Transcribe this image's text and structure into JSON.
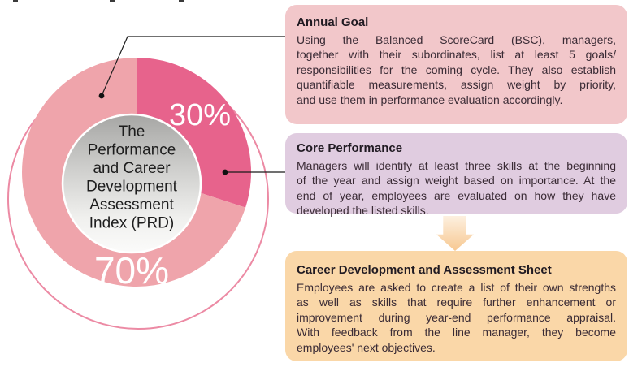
{
  "chart_data": {
    "type": "pie",
    "title": "The Performance and Career Development Assessment Index (PRD)",
    "labels": [
      "30%",
      "70%"
    ],
    "values": [
      30,
      70
    ],
    "colors": [
      "#e7638c",
      "#efa4ab"
    ],
    "label_color": "#ffffff",
    "ring_stroke_color": "#ec8aa4",
    "center_text_lines": [
      "The",
      "Performance",
      "and Career",
      "Development",
      "Assessment",
      "Index (PRD)"
    ],
    "legend": "none",
    "annotations": [
      "callout from 70% segment to Annual Goal box",
      "callout from 30% segment to Core Performance box"
    ]
  },
  "boxes": [
    {
      "title": "Annual Goal",
      "bg": "#f2c7ca",
      "lines": [
        "Using the Balanced ScoreCard (BSC), managers,",
        "together with their subordinates, list at least 5 goals/",
        "responsibilities for the coming cycle. They also establish",
        "quantifiable measurements, assign weight by priority,",
        "and use them in performance evaluation accordingly."
      ]
    },
    {
      "title": "Core Performance",
      "bg": "#e0cce0",
      "lines": [
        "Managers will identify at least three skills at the beginning",
        "of the year and assign weight based on importance. At the",
        "end of year, employees are evaluated on how they have",
        "developed the listed skills."
      ]
    },
    {
      "title": "Career Development and Assessment Sheet",
      "bg": "#fad7a8",
      "lines": [
        "Employees are asked to create a list of their own strengths",
        "as well as skills that require further enhancement or",
        "improvement during year-end performance appraisal.",
        "With feedback from the line manager, they become",
        "employees' next objectives."
      ]
    }
  ],
  "arrow": {
    "direction": "down",
    "gradient_top": "#fdf0e0",
    "gradient_bottom": "#f7c891"
  },
  "callout": {
    "line_color": "#1a1a1a"
  }
}
